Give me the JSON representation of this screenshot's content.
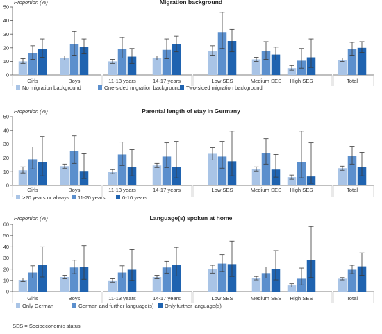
{
  "footnote": "SES = Socioeconomic status",
  "colors": {
    "s0": "#a9c4e6",
    "s1": "#5b8fcd",
    "s2": "#1f63b0",
    "axis": "#555555",
    "grid": "#c8c8c8",
    "err": "#3a3a3a"
  },
  "chart_data": [
    {
      "type": "bar",
      "title": "Migration background",
      "ylabel": "Proportion (%)",
      "ylim": [
        0,
        50
      ],
      "yticks": [
        0,
        10,
        20,
        30,
        40,
        50
      ],
      "grid": false,
      "legend_position": "bottom",
      "groups": [
        {
          "sections": [
            {
              "categories": [
                "Girls"
              ]
            },
            {
              "categories": [
                "Boys"
              ]
            }
          ]
        },
        {
          "sections": [
            {
              "categories": [
                "11-13 years"
              ]
            },
            {
              "categories": [
                "14-17 years"
              ]
            }
          ]
        },
        {
          "sections": [
            {
              "categories": [
                "Low SES"
              ]
            },
            {
              "categories": [
                "Medium SES"
              ]
            },
            {
              "categories": [
                "High SES"
              ]
            }
          ]
        },
        {
          "sections": [
            {
              "categories": [
                "Total"
              ]
            }
          ]
        }
      ],
      "categories": [
        "Girls",
        "Boys",
        "11-13 years",
        "14-17 years",
        "Low SES",
        "Medium SES",
        "High SES",
        "Total"
      ],
      "series": [
        {
          "name": "No migration background",
          "values": [
            10,
            12.5,
            10,
            12.5,
            17.5,
            11.5,
            5,
            11
          ],
          "err_low": [
            8.5,
            11,
            8.5,
            11,
            14.5,
            10,
            3.5,
            10
          ],
          "err_high": [
            12,
            14,
            11.5,
            14,
            21.5,
            13,
            7,
            12.5
          ]
        },
        {
          "name": "One-sided migration background",
          "values": [
            16,
            22.5,
            19,
            18.5,
            31.5,
            17.5,
            10.5,
            19
          ],
          "err_low": [
            11.5,
            14.5,
            12.5,
            12,
            19.5,
            11.5,
            5,
            14.5
          ],
          "err_high": [
            21.5,
            32,
            27.5,
            26.5,
            46,
            24.5,
            19.5,
            24
          ]
        },
        {
          "name": "Two-sided migration background",
          "values": [
            19,
            20.5,
            13.5,
            22.5,
            25,
            15,
            13,
            20
          ],
          "err_low": [
            13,
            15.5,
            8.5,
            17,
            17,
            11,
            5.5,
            16.5
          ],
          "err_high": [
            26.5,
            26.5,
            19.5,
            28.5,
            33.5,
            20.5,
            26.5,
            24.5
          ]
        }
      ]
    },
    {
      "type": "bar",
      "title": "Parental length of stay in Germany",
      "ylabel": "Proportion (%)",
      "ylim": [
        0,
        50
      ],
      "yticks": [
        0,
        10,
        20,
        30,
        40,
        50
      ],
      "grid": false,
      "legend_position": "bottom",
      "groups": [
        {
          "sections": [
            {
              "categories": [
                "Girls"
              ]
            },
            {
              "categories": [
                "Boys"
              ]
            }
          ]
        },
        {
          "sections": [
            {
              "categories": [
                "11-13 years"
              ]
            },
            {
              "categories": [
                "14-17 years"
              ]
            }
          ]
        },
        {
          "sections": [
            {
              "categories": [
                "Low SES"
              ]
            },
            {
              "categories": [
                "Medium SES"
              ]
            },
            {
              "categories": [
                "High SES"
              ]
            }
          ]
        },
        {
          "sections": [
            {
              "categories": [
                "Total"
              ]
            }
          ]
        }
      ],
      "categories": [
        "Girls",
        "Boys",
        "11-13 years",
        "14-17 years",
        "Low SES",
        "Medium SES",
        "High SES",
        "Total"
      ],
      "series": [
        {
          "name": ">20 years or always",
          "values": [
            11,
            14,
            10,
            14.5,
            23,
            12,
            6,
            12.5
          ],
          "err_low": [
            9,
            12.5,
            8.5,
            13,
            18.5,
            10.5,
            4.5,
            11
          ],
          "err_high": [
            13.5,
            15.5,
            11.5,
            16,
            27.5,
            13.5,
            7.5,
            14
          ]
        },
        {
          "name": "11-20 years",
          "values": [
            19,
            25,
            22.5,
            21,
            21,
            23.5,
            17,
            21.5
          ],
          "err_low": [
            12,
            16,
            14.5,
            13,
            12.5,
            15.5,
            5.5,
            15.5
          ],
          "err_high": [
            28,
            36,
            31.5,
            31,
            32,
            34,
            39.5,
            28.5
          ]
        },
        {
          "name": "0-10 years",
          "values": [
            17,
            10.5,
            13.5,
            13.5,
            17.5,
            11.5,
            6.5,
            13.5
          ],
          "err_low": [
            7,
            5,
            7,
            5.5,
            7,
            6,
            1.5,
            7
          ],
          "err_high": [
            35.5,
            23,
            26,
            32,
            39.5,
            22.5,
            31,
            24
          ]
        }
      ]
    },
    {
      "type": "bar",
      "title": "Language(s) spoken at home",
      "ylabel": "Proportion (%)",
      "ylim": [
        0,
        60
      ],
      "yticks": [
        0,
        10,
        20,
        30,
        40,
        50,
        60
      ],
      "grid": false,
      "legend_position": "bottom",
      "groups": [
        {
          "sections": [
            {
              "categories": [
                "Girls"
              ]
            },
            {
              "categories": [
                "Boys"
              ]
            }
          ]
        },
        {
          "sections": [
            {
              "categories": [
                "11-13 years"
              ]
            },
            {
              "categories": [
                "14-17 years"
              ]
            }
          ]
        },
        {
          "sections": [
            {
              "categories": [
                "Low SES"
              ]
            },
            {
              "categories": [
                "Medium SES"
              ]
            },
            {
              "categories": [
                "High SES"
              ]
            }
          ]
        },
        {
          "sections": [
            {
              "categories": [
                "Total"
              ]
            }
          ]
        }
      ],
      "categories": [
        "Girls",
        "Boys",
        "11-13 years",
        "14-17 years",
        "Low SES",
        "Medium SES",
        "High SES",
        "Total"
      ],
      "series": [
        {
          "name": "Only German",
          "values": [
            10.5,
            13,
            10,
            13,
            20,
            12,
            5.5,
            11.5
          ],
          "err_low": [
            9,
            11.5,
            8.5,
            11.5,
            16.5,
            10.5,
            4,
            10.5
          ],
          "err_high": [
            12,
            14.5,
            11.5,
            14.5,
            23.5,
            13.5,
            7,
            12.5
          ]
        },
        {
          "name": "German and further language(s)",
          "values": [
            17,
            21.5,
            17,
            21.5,
            25,
            16.5,
            11.5,
            19.5
          ],
          "err_low": [
            12,
            16,
            12,
            16.5,
            18,
            12,
            6,
            16
          ],
          "err_high": [
            23,
            28,
            23,
            27,
            33,
            22,
            21,
            23.5
          ]
        },
        {
          "name": "Only further language(s)",
          "values": [
            23.5,
            22,
            19.5,
            24,
            24.5,
            20,
            28,
            22.5
          ],
          "err_low": [
            13,
            11,
            10,
            14,
            13.5,
            10.5,
            12.5,
            14.5
          ],
          "err_high": [
            40,
            41,
            37.5,
            39.5,
            45,
            36.5,
            58,
            34.5
          ]
        }
      ]
    }
  ]
}
